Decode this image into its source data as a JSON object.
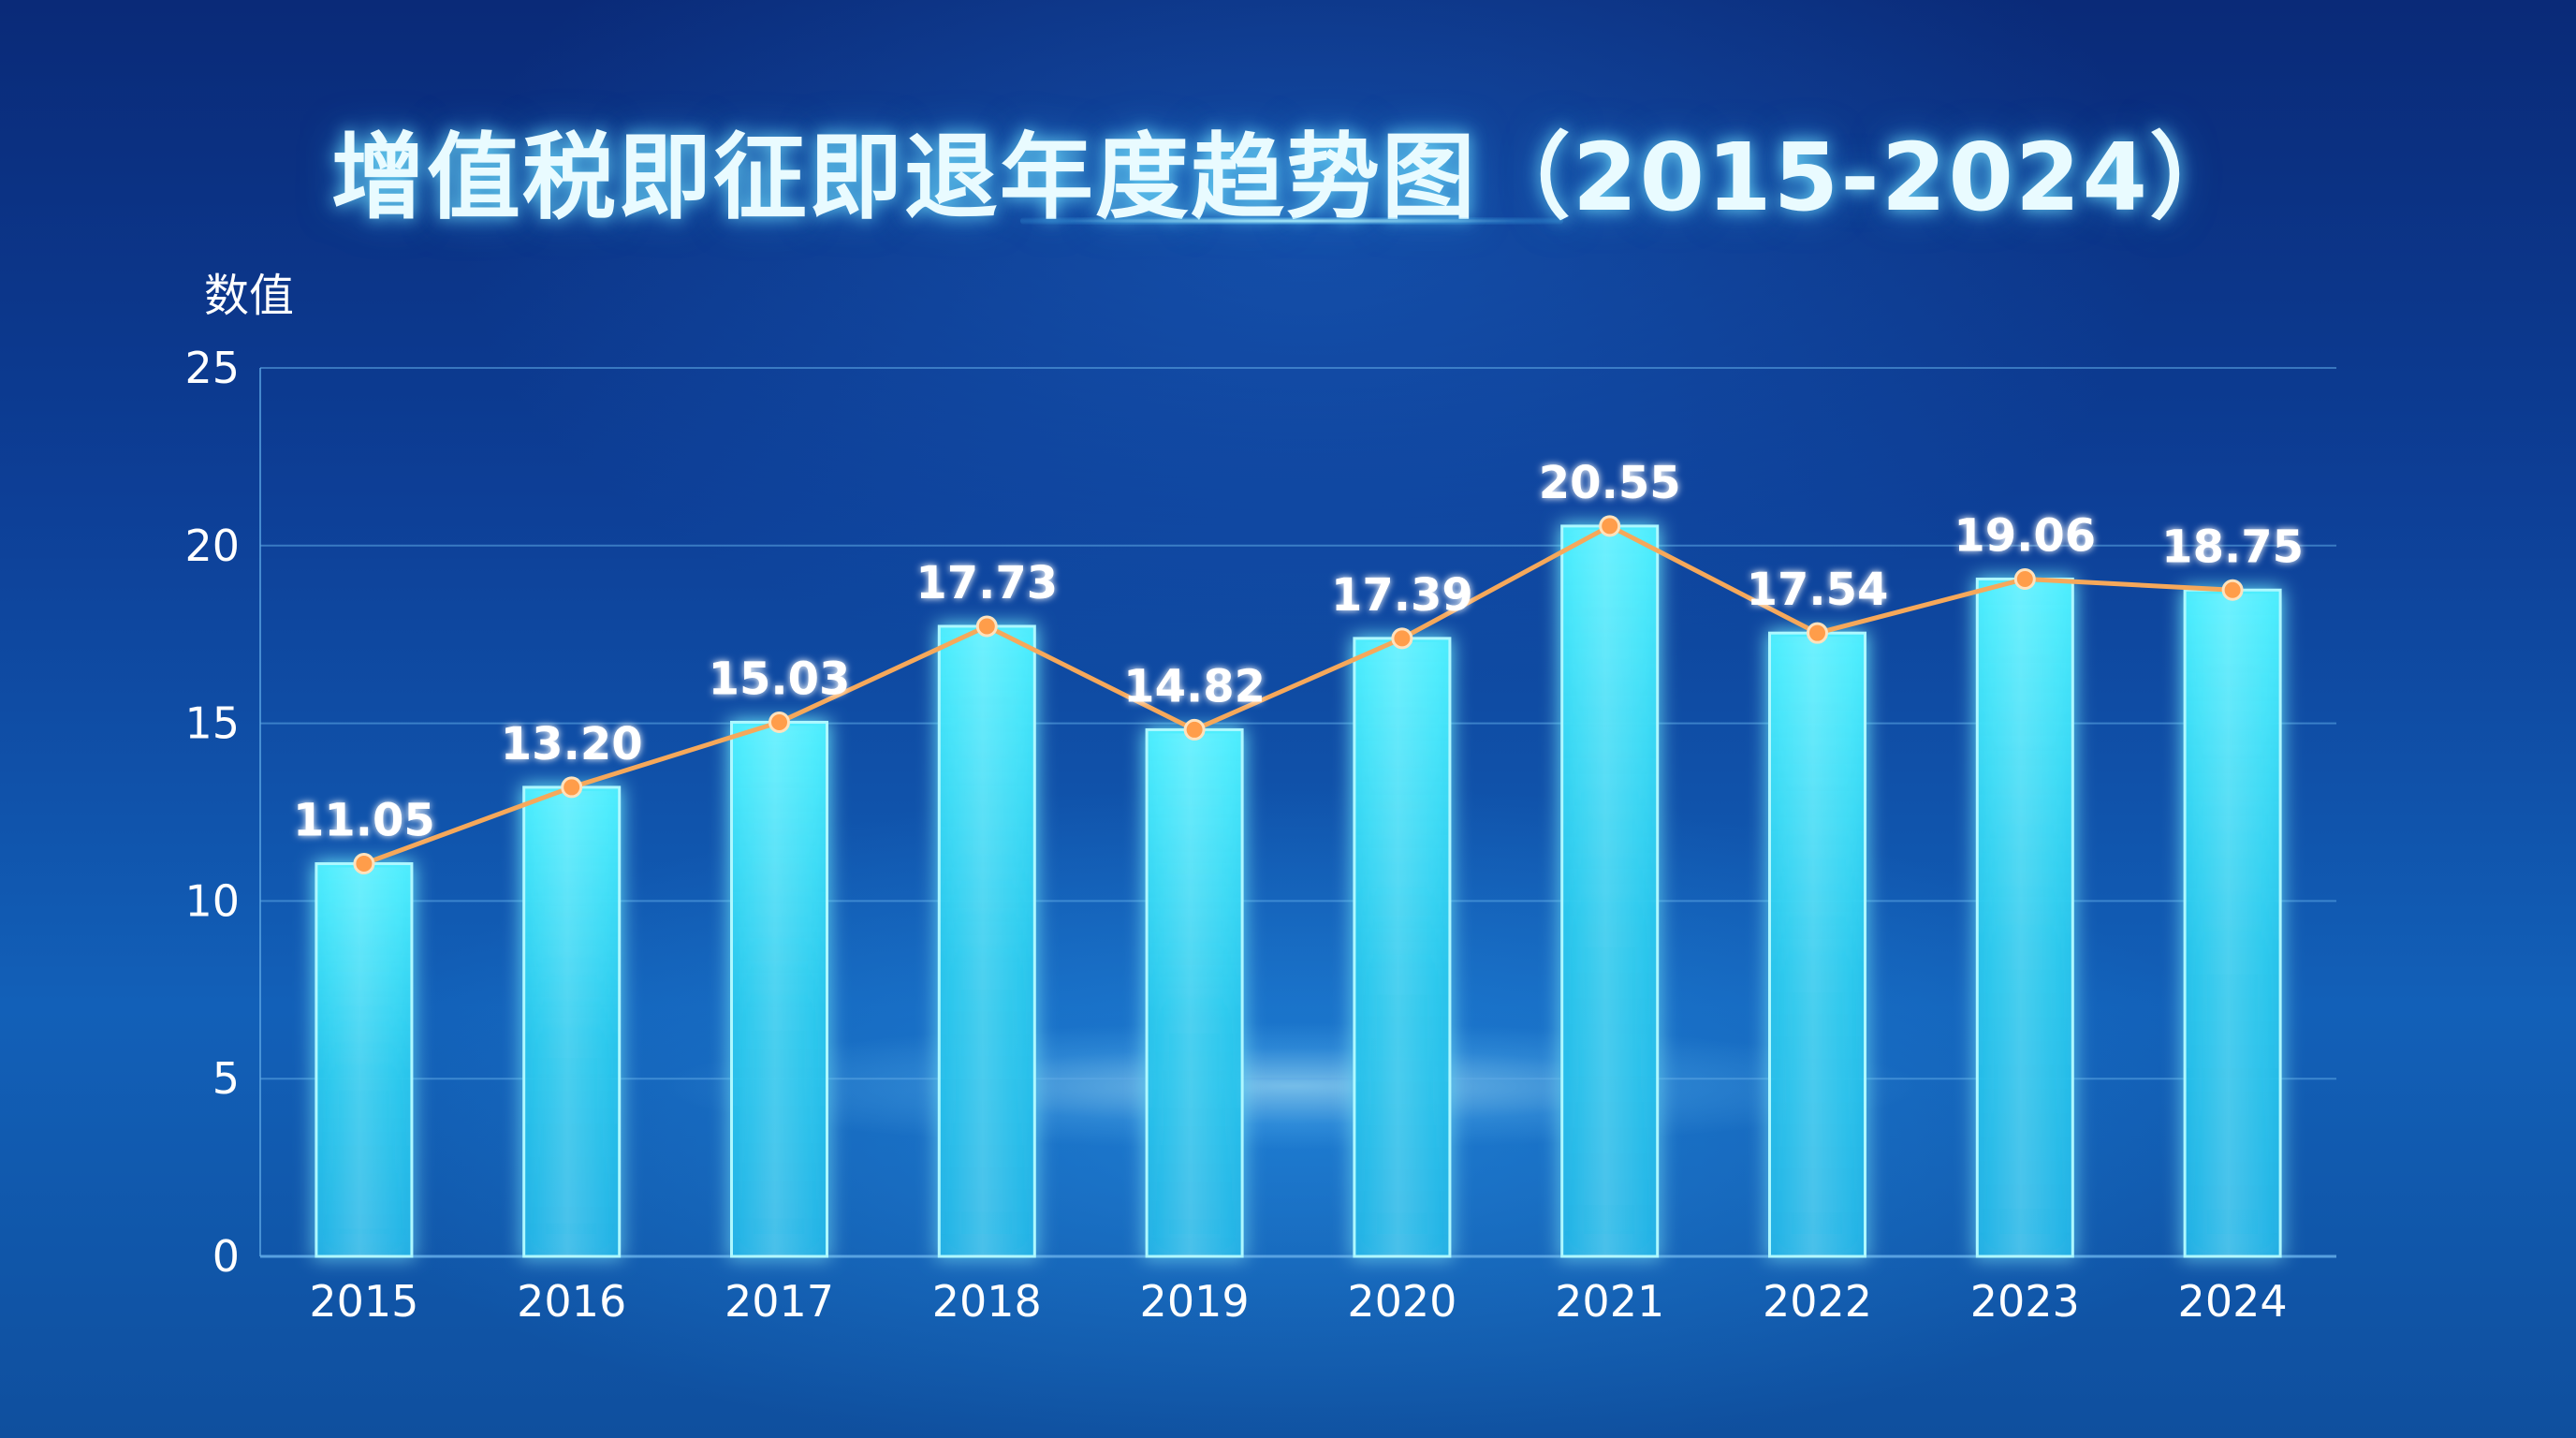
{
  "title": "增值税即征即退年度趋势图（2015-2024）",
  "colors": {
    "bar": "#39e3f5",
    "line": "#f6a85a",
    "marker": "#ff9d4a",
    "grid": "#5fa9e6"
  },
  "chart_data": {
    "type": "bar",
    "title": "增值税即征即退年度趋势图（2015-2024）",
    "ylabel": "数值",
    "xlabel": "",
    "ylim": [
      0,
      25
    ],
    "yticks": [
      0,
      5,
      10,
      15,
      20,
      25
    ],
    "grid": true,
    "categories": [
      "2015",
      "2016",
      "2017",
      "2018",
      "2019",
      "2020",
      "2021",
      "2022",
      "2023",
      "2024"
    ],
    "values": [
      11.05,
      13.2,
      15.03,
      17.73,
      14.82,
      17.39,
      20.55,
      17.54,
      19.06,
      18.75
    ],
    "value_labels": [
      "11.05",
      "13.20",
      "15.03",
      "17.73",
      "14.82",
      "17.39",
      "20.55",
      "17.54",
      "19.06",
      "18.75"
    ],
    "overlay_line": {
      "type": "line",
      "values": [
        11.05,
        13.2,
        15.03,
        17.73,
        14.82,
        17.39,
        20.55,
        17.54,
        19.06,
        18.75
      ]
    }
  }
}
